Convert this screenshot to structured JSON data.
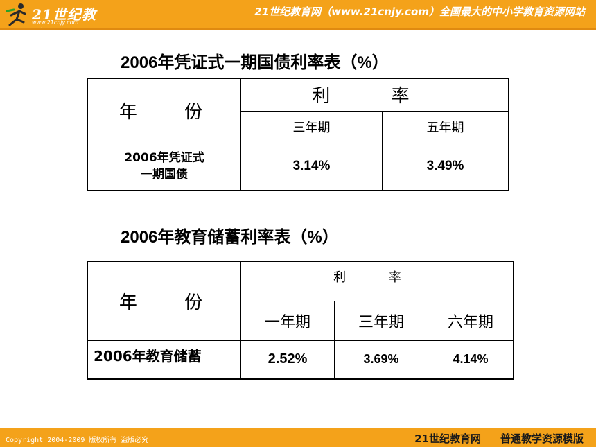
{
  "header": {
    "logo_text": "21世纪教育",
    "logo_url": "www.21cnjy.com",
    "slogan": "21世纪教育网（www.21cnjy.com）全国最大的中小学教育资源网站"
  },
  "footer": {
    "copyright": "Copyright 2004-2009 版权所有 盗版必究",
    "brand": "21世纪教育网",
    "template": "普通教学资源模版"
  },
  "table1": {
    "title": "2006年凭证式一期国债利率表（%）",
    "year_header": "年 份",
    "rate_header": "利 率",
    "columns": [
      "三年期",
      "五年期"
    ],
    "row_label_line1": "2006年凭证式",
    "row_label_line2": "一期国债",
    "values": [
      "3.14%",
      "3.49%"
    ]
  },
  "table2": {
    "title": "2006年教育储蓄利率表（%）",
    "year_header": "年 份",
    "rate_header": "利 率",
    "columns": [
      "一年期",
      "三年期",
      "六年期"
    ],
    "row_label": "2006年教育储蓄",
    "values": [
      "2.52%",
      "3.69%",
      "4.14%"
    ]
  }
}
